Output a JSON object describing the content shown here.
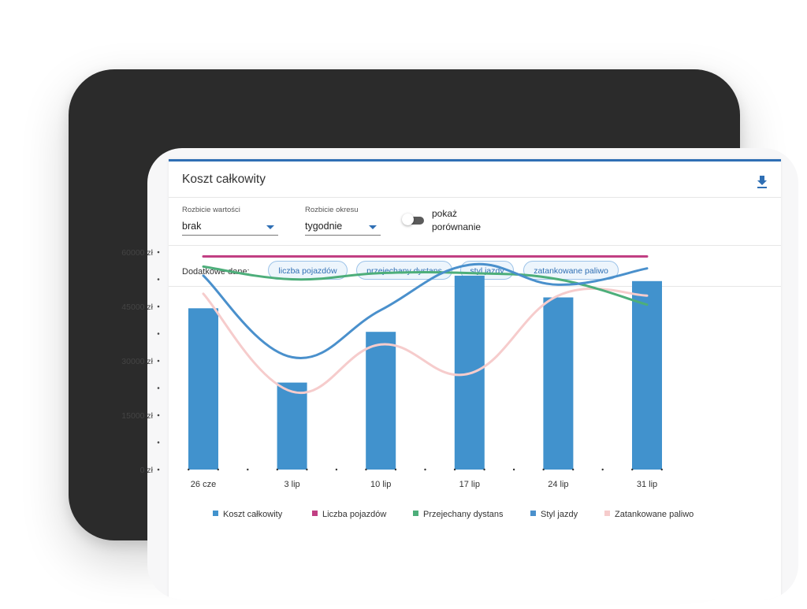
{
  "header": {
    "title": "Koszt całkowity",
    "download_icon": "download-icon"
  },
  "controls": {
    "value_breakdown": {
      "label": "Rozbicie wartości",
      "value": "brak"
    },
    "period_breakdown": {
      "label": "Rozbicie okresu",
      "value": "tygodnie"
    },
    "comparison_toggle": {
      "label": "pokaż porównanie",
      "on": false
    }
  },
  "extra_data": {
    "label": "Dodatkowe dane:",
    "chips": [
      "liczba pojazdów",
      "przejechany dystans",
      "styl jazdy",
      "zatankowane paliwo"
    ]
  },
  "chart_data": {
    "type": "bar",
    "categories": [
      "26 cze",
      "3 lip",
      "10 lip",
      "17 lip",
      "24 lip",
      "31 lip"
    ],
    "y_ticks": [
      "0 zł",
      "15000 zł",
      "30000 zł",
      "45000 zł",
      "60000 zł"
    ],
    "ylim": [
      0,
      60000
    ],
    "series": [
      {
        "name": "Koszt całkowity",
        "type": "bar",
        "color": "#4192cd",
        "values": [
          44500,
          24000,
          38000,
          53500,
          47500,
          52000
        ]
      },
      {
        "name": "Liczba pojazdów",
        "type": "line",
        "color": "#c13f83",
        "values": [
          58800,
          58800,
          58800,
          58800,
          58800,
          58800
        ]
      },
      {
        "name": "Przejechany dystans",
        "type": "line",
        "color": "#4dae7a",
        "values": [
          56000,
          52500,
          54200,
          54200,
          52500,
          45500
        ]
      },
      {
        "name": "Styl jazdy",
        "type": "line",
        "color": "#4a90cc",
        "values": [
          53500,
          31000,
          44000,
          56500,
          51000,
          55500
        ]
      },
      {
        "name": "Zatankowane paliwo",
        "type": "line",
        "color": "#f6cccc",
        "values": [
          48500,
          21500,
          34500,
          26500,
          48000,
          48000
        ]
      }
    ]
  }
}
